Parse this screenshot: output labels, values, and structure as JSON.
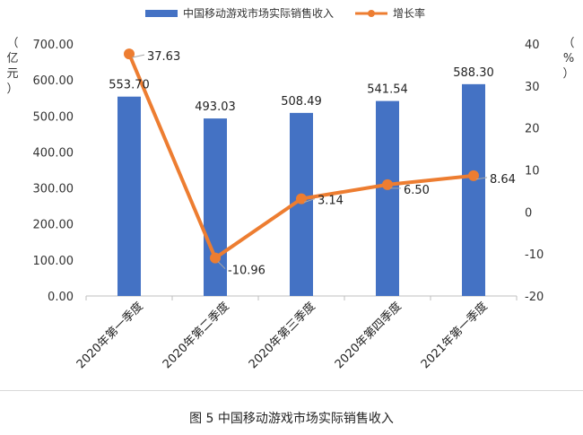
{
  "chart_data": {
    "type": "bar",
    "categories": [
      "2020年第一季度",
      "2020年第二季度",
      "2020年第三季度",
      "2020年第四季度",
      "2021年第一季度"
    ],
    "series": [
      {
        "name": "中国移动游戏市场实际销售收入",
        "type": "bar",
        "axis": "left",
        "values": [
          553.7,
          493.03,
          508.49,
          541.54,
          588.3
        ],
        "labels": [
          "553.70",
          "493.03",
          "508.49",
          "541.54",
          "588.30"
        ],
        "color": "#4472C4"
      },
      {
        "name": "增长率",
        "type": "line",
        "axis": "right",
        "values": [
          37.63,
          -10.96,
          3.14,
          6.5,
          8.64
        ],
        "labels": [
          "37.63",
          "-10.96",
          "3.14",
          "6.50",
          "8.64"
        ],
        "color": "#ED7D31"
      }
    ],
    "ylim": [
      0,
      700
    ],
    "yticks": [
      "0.00",
      "100.00",
      "200.00",
      "300.00",
      "400.00",
      "500.00",
      "600.00",
      "700.00"
    ],
    "y2lim": [
      -20,
      40
    ],
    "y2ticks": [
      "-20",
      "-10",
      "0",
      "10",
      "20",
      "30",
      "40"
    ],
    "ylabel": "（亿元）",
    "y2label": "（%）",
    "grid": false,
    "legend": "top"
  },
  "caption": "图 5  中国移动游戏市场实际销售收入"
}
